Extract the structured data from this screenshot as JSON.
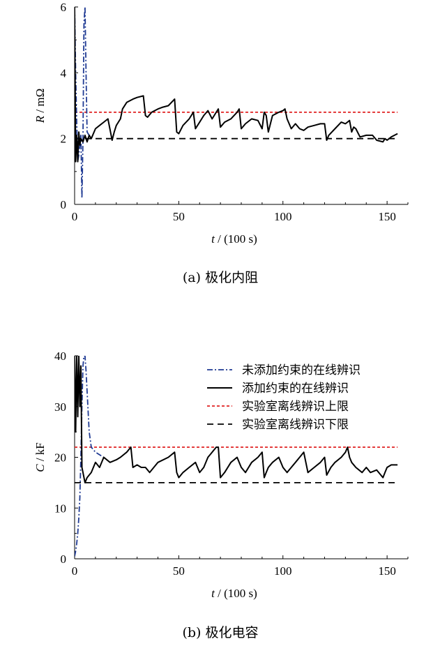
{
  "chart_data": [
    {
      "type": "line",
      "caption": "(a)  极化内阻",
      "xlabel_var": "t",
      "xlabel_unit": " / (100 s)",
      "ylabel_var": "R",
      "ylabel_unit": " / mΩ",
      "xlim": [
        0,
        160
      ],
      "ylim": [
        0,
        6
      ],
      "xticks": [
        0,
        50,
        100,
        150
      ],
      "yticks": [
        0,
        2,
        4,
        6
      ],
      "grid": false,
      "series": [
        {
          "color": "#1f3a93",
          "dash": "dashdot",
          "x": [
            0,
            0.5,
            1,
            1.5,
            2,
            2.5,
            3,
            3.5,
            4,
            4.5,
            5,
            5.5,
            6,
            6.5,
            7,
            8
          ],
          "y": [
            6,
            4.0,
            2.5,
            1.3,
            1.5,
            1.8,
            2.1,
            0.2,
            2.0,
            5.5,
            6.0,
            4.0,
            2.2,
            2.15,
            2.1,
            2.0
          ]
        },
        {
          "color": "#000000",
          "dash": "solid",
          "x": [
            0,
            0.5,
            1,
            1.5,
            2,
            2.5,
            3,
            4,
            5,
            6,
            7,
            8,
            10,
            12,
            14,
            16,
            18,
            19,
            20,
            22,
            23,
            25,
            28,
            30,
            33,
            34,
            35,
            37,
            40,
            42,
            45,
            48,
            49,
            50,
            52,
            55,
            57,
            58,
            60,
            62,
            64,
            66,
            68,
            69,
            70,
            72,
            75,
            78,
            79,
            80,
            82,
            85,
            88,
            90,
            91,
            92,
            93,
            95,
            98,
            100,
            101,
            102,
            104,
            106,
            108,
            110,
            112,
            115,
            118,
            120,
            121,
            122,
            125,
            128,
            130,
            132,
            133,
            134,
            135,
            137,
            140,
            143,
            145,
            148,
            149,
            150,
            152,
            155
          ],
          "y": [
            6,
            1.3,
            2.1,
            1.3,
            2.2,
            1.8,
            2.0,
            1.9,
            2.1,
            1.9,
            2.1,
            2.0,
            2.3,
            2.4,
            2.5,
            2.6,
            1.95,
            2.2,
            2.4,
            2.6,
            2.9,
            3.1,
            3.2,
            3.25,
            3.3,
            2.7,
            2.65,
            2.8,
            2.9,
            2.95,
            3.0,
            3.2,
            2.2,
            2.15,
            2.4,
            2.6,
            2.8,
            2.3,
            2.5,
            2.7,
            2.85,
            2.6,
            2.8,
            2.9,
            2.35,
            2.5,
            2.6,
            2.8,
            2.9,
            2.3,
            2.45,
            2.6,
            2.55,
            2.3,
            2.8,
            2.7,
            2.2,
            2.7,
            2.8,
            2.85,
            2.9,
            2.6,
            2.3,
            2.45,
            2.3,
            2.25,
            2.35,
            2.4,
            2.45,
            2.45,
            1.95,
            2.1,
            2.3,
            2.5,
            2.45,
            2.55,
            2.2,
            2.35,
            2.3,
            2.05,
            2.1,
            2.1,
            1.95,
            1.9,
            2.0,
            1.95,
            2.05,
            2.15
          ]
        },
        {
          "color": "#e02020",
          "dash": "shortdash",
          "x": [
            0,
            155
          ],
          "y": [
            2.8,
            2.8
          ]
        },
        {
          "color": "#000000",
          "dash": "longdash",
          "x": [
            0,
            155
          ],
          "y": [
            2.0,
            2.0
          ]
        }
      ]
    },
    {
      "type": "line",
      "caption": "(b)  极化电容",
      "xlabel_var": "t",
      "xlabel_unit": " / (100 s)",
      "ylabel_var": "C",
      "ylabel_unit": " / kF",
      "xlim": [
        0,
        160
      ],
      "ylim": [
        0,
        40
      ],
      "xticks": [
        0,
        50,
        100,
        150
      ],
      "yticks": [
        0,
        10,
        20,
        30,
        40
      ],
      "grid": false,
      "legend_position": "top-right",
      "series": [
        {
          "name": "未添加约束的在线辨识",
          "color": "#1f3a93",
          "dash": "dashdot",
          "x": [
            0,
            0.5,
            1,
            1.5,
            2,
            2.5,
            3,
            3.5,
            4,
            4.5,
            5,
            5.5,
            6,
            7,
            8,
            10,
            12,
            14
          ],
          "y": [
            0.5,
            1.5,
            3,
            5,
            8,
            12,
            20,
            30,
            38,
            40,
            40,
            37,
            33,
            25,
            22,
            21,
            20.5,
            20
          ]
        },
        {
          "name": "添加约束的在线辨识",
          "color": "#000000",
          "dash": "solid",
          "x": [
            0,
            0.5,
            1,
            1.5,
            2,
            2.5,
            3,
            3.5,
            4,
            5,
            6,
            8,
            10,
            12,
            14,
            17,
            20,
            22,
            25,
            27,
            28,
            30,
            32,
            34,
            36,
            40,
            45,
            48,
            49,
            50,
            52,
            55,
            58,
            60,
            62,
            64,
            66,
            68,
            69,
            70,
            72,
            75,
            78,
            80,
            82,
            85,
            88,
            90,
            91,
            92,
            93,
            95,
            98,
            100,
            102,
            104,
            106,
            108,
            110,
            112,
            115,
            118,
            120,
            121,
            123,
            125,
            128,
            130,
            131,
            132,
            133,
            135,
            138,
            140,
            142,
            145,
            147,
            148,
            149,
            150,
            152,
            155
          ],
          "y": [
            40,
            25,
            40,
            28,
            40,
            30,
            38,
            18,
            17,
            15,
            16,
            17,
            19,
            18,
            20,
            19,
            19.5,
            20,
            21,
            22,
            18,
            18.5,
            18,
            18,
            17,
            19,
            20,
            21,
            17,
            16,
            17,
            18,
            19,
            17,
            18,
            20,
            21,
            22,
            22,
            16,
            17,
            19,
            20,
            18,
            17,
            19,
            20,
            21,
            16,
            17,
            18,
            19,
            20,
            18,
            17,
            18,
            19,
            20,
            21,
            17,
            18,
            19,
            20,
            16.5,
            18,
            19,
            20,
            21,
            22,
            20,
            19,
            18,
            17,
            18,
            17,
            17.5,
            16.5,
            16,
            17,
            18,
            18.5,
            18.5
          ]
        },
        {
          "name": "实验室离线辨识上限",
          "color": "#e02020",
          "dash": "shortdash",
          "x": [
            0,
            155
          ],
          "y": [
            22,
            22
          ]
        },
        {
          "name": "实验室离线辨识下限",
          "color": "#000000",
          "dash": "longdash",
          "x": [
            0,
            155
          ],
          "y": [
            15,
            15
          ]
        }
      ]
    }
  ]
}
